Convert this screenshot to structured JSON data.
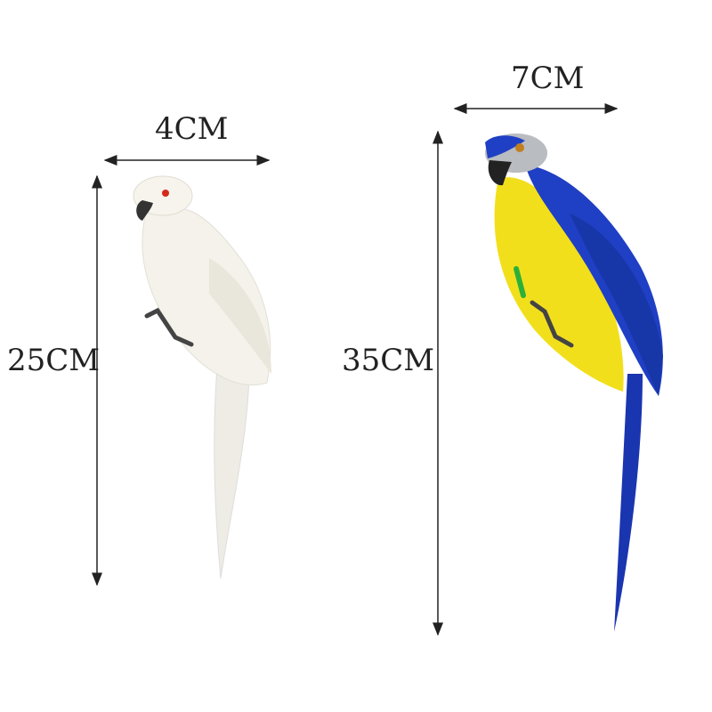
{
  "white_parrot": {
    "width_label": "4CM",
    "height_label": "25CM",
    "body_color": "#f4f2ea",
    "eye_color": "#d42a1a"
  },
  "blue_parrot": {
    "width_label": "7CM",
    "height_label": "35CM",
    "back_color": "#1f3fc4",
    "chest_color": "#f2df1c",
    "head_color": "#b9bcc0"
  },
  "arrow_color": "#222222"
}
